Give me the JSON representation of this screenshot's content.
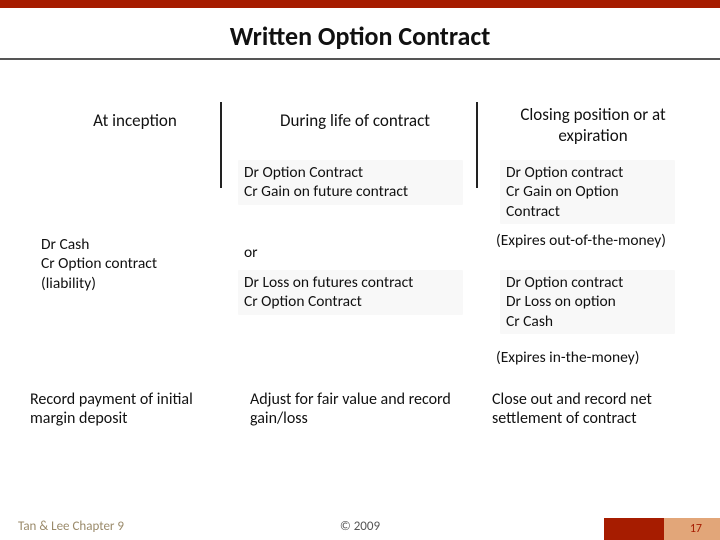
{
  "title": "Written Option Contract",
  "columns": {
    "c1": "At inception",
    "c2": "During life of contract",
    "c3": "Closing position or at expiration"
  },
  "entries": {
    "inception": "Dr Cash\nCr Option contract (liability)",
    "during1": "Dr Option Contract\nCr Gain on future contract",
    "during_or": "or",
    "during2": "Dr Loss on futures contract\nCr Option Contract",
    "close1": "Dr Option contract\nCr Gain on Option Contract",
    "close_note1": "(Expires out-of-the-money)",
    "close2": "Dr Option contract\nDr Loss on option\nCr Cash",
    "close_note2": "(Expires in-the-money)"
  },
  "summaries": {
    "s1": "Record payment of initial margin deposit",
    "s2": "Adjust for fair value and record gain/loss",
    "s3": "Close out and record net settlement of contract"
  },
  "footer": {
    "left": "Tan & Lee Chapter 9",
    "center": "© 2009",
    "page": "17"
  },
  "colors": {
    "accent": "#a61c00",
    "footer_right": "#e2a679",
    "text": "#111111",
    "muted": "#9a8a6a"
  }
}
